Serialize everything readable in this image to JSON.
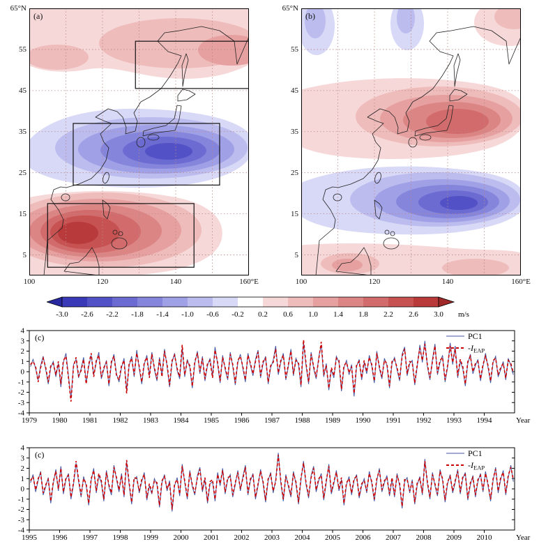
{
  "figure": {
    "panels": {
      "map_a_label": "(a)",
      "map_b_label": "(b)"
    },
    "map_axes": {
      "lat_ticks": [
        {
          "label": "65°N",
          "lat": 65
        },
        {
          "label": "55",
          "lat": 55
        },
        {
          "label": "45",
          "lat": 45
        },
        {
          "label": "35",
          "lat": 35
        },
        {
          "label": "25",
          "lat": 25
        },
        {
          "label": "15",
          "lat": 15
        },
        {
          "label": "5",
          "lat": 5
        }
      ],
      "lon_ticks": [
        {
          "label": "100",
          "lon": 100
        },
        {
          "label": "120",
          "lon": 120
        },
        {
          "label": "140",
          "lon": 140
        },
        {
          "label": "160°E",
          "lon": 160
        }
      ],
      "grid_lats": [
        55,
        45,
        35,
        25,
        15,
        5
      ],
      "grid_lons": [
        110,
        120,
        130,
        140,
        150
      ]
    },
    "colorbar": {
      "tick_labels": [
        "-3.0",
        "-2.6",
        "-2.2",
        "-1.8",
        "-1.4",
        "-1.0",
        "-0.6",
        "-0.2",
        "0.2",
        "0.6",
        "1.0",
        "1.4",
        "1.8",
        "2.2",
        "2.6",
        "3.0"
      ],
      "unit": "m/s",
      "cell_colors": [
        "#3a3ab8",
        "#5252c6",
        "#6b6bd2",
        "#8585dc",
        "#a0a0e6",
        "#bcbcef",
        "#d8d8f7",
        "#ffffff",
        "#f7d8d8",
        "#efbcbc",
        "#e6a0a0",
        "#dc8585",
        "#d26b6b",
        "#c65252",
        "#b83a3a"
      ],
      "left_arrow_color": "#2828a0",
      "right_arrow_color": "#a02828"
    }
  },
  "chart_data": [
    {
      "type": "heatmap",
      "subtype": "filled-contour-map",
      "label": "(a)",
      "lon_range": [
        100,
        160
      ],
      "lat_range": [
        0,
        65
      ],
      "unit": "m/s",
      "value_range": [
        -3.0,
        3.0
      ],
      "boxes": [
        {
          "lon": [
            129,
            160
          ],
          "lat": [
            45.5,
            57
          ]
        },
        {
          "lon": [
            112,
            152
          ],
          "lat": [
            22,
            37
          ]
        },
        {
          "lon": [
            105,
            145
          ],
          "lat": [
            2,
            17.5
          ]
        }
      ]
    },
    {
      "type": "heatmap",
      "subtype": "filled-contour-map",
      "label": "(b)",
      "lon_range": [
        100,
        160
      ],
      "lat_range": [
        0,
        65
      ],
      "unit": "m/s",
      "value_range": [
        -3.0,
        3.0
      ],
      "boxes": []
    },
    {
      "type": "line",
      "label": "(c)",
      "x_start": 1979,
      "x_end": 1995,
      "x_tick_labels": [
        "1979",
        "1980",
        "1981",
        "1982",
        "1983",
        "1984",
        "1985",
        "1986",
        "1987",
        "1988",
        "1989",
        "1990",
        "1991",
        "1992",
        "1993",
        "1994"
      ],
      "x_axis_suffix": "Year",
      "ylim": [
        -4,
        4
      ],
      "y_ticks": [
        -4,
        -3,
        -2,
        -1,
        0,
        1,
        2,
        3,
        4
      ],
      "series": [
        {
          "name": "PC1",
          "color": "#4455a0",
          "style": "solid",
          "monthly_values": [
            0.5,
            1.2,
            0.3,
            -0.8,
            0.6,
            1.5,
            0.2,
            -1.2,
            0.4,
            1.0,
            -0.5,
            0.8,
            -1.5,
            0.9,
            1.8,
            -0.4,
            -2.6,
            0.7,
            1.2,
            -0.6,
            0.3,
            1.4,
            -1.0,
            0.5,
            1.6,
            -0.3,
            0.9,
            1.9,
            -0.7,
            0.2,
            1.1,
            -1.4,
            0.8,
            1.7,
            -0.2,
            -1.0,
            0.4,
            1.3,
            -1.8,
            0.6,
            1.5,
            -0.5,
            2.1,
            0.3,
            -1.2,
            0.7,
            1.6,
            -0.4,
            1.9,
            0.2,
            -0.9,
            1.4,
            -0.3,
            2.2,
            0.5,
            -1.5,
            0.9,
            1.8,
            0.1,
            -0.7,
            2.3,
            -0.5,
            1.2,
            0.4,
            -1.6,
            0.8,
            2.0,
            -0.2,
            1.5,
            -0.9,
            0.6,
            1.3,
            -0.4,
            2.4,
            0.7,
            -1.1,
            1.6,
            0.2,
            -0.8,
            1.9,
            0.5,
            -1.3,
            0.9,
            1.7,
            0.3,
            -1.0,
            1.8,
            0.6,
            -0.4,
            1.2,
            2.1,
            -0.6,
            0.8,
            1.5,
            -1.2,
            0.4,
            1.1,
            2.5,
            -0.3,
            0.9,
            1.8,
            -0.8,
            0.5,
            2.2,
            -0.4,
            1.3,
            0.7,
            -1.5,
            2.8,
            0.6,
            -1.2,
            1.9,
            0.3,
            -0.7,
            1.4,
            2.6,
            -0.5,
            0.8,
            -1.8,
            0.2,
            -0.6,
            1.5,
            0.9,
            -1.9,
            0.4,
            1.1,
            -0.3,
            0.7,
            -2.4,
            0.5,
            1.2,
            -0.8,
            0.9,
            -0.2,
            1.6,
            0.5,
            -1.1,
            2.0,
            0.3,
            -0.7,
            1.3,
            0.6,
            -1.6,
            0.8,
            1.4,
            0.2,
            -0.9,
            1.7,
            2.4,
            -0.4,
            0.8,
            1.1,
            -1.3,
            0.5,
            2.6,
            0.9,
            3.0,
            0.5,
            -0.8,
            1.2,
            2.7,
            -0.3,
            0.9,
            1.6,
            -1.0,
            0.4,
            2.8,
            0.7,
            2.5,
            -0.6,
            1.0,
            0.3,
            -1.4,
            0.8,
            1.7,
            -0.2,
            0.6,
            1.2,
            -0.9,
            0.5,
            1.8,
            0.4,
            -1.1,
            0.9,
            1.5,
            -0.5,
            0.2,
            1.0,
            -0.8,
            1.3,
            0.6,
            -0.3
          ]
        },
        {
          "name": "-I_EAP",
          "display": {
            "main": "-I",
            "sub": "EAP"
          },
          "color": "#cc0000",
          "style": "dashed",
          "monthly_values": [
            0.7,
            1.0,
            0.5,
            -1.0,
            0.4,
            1.3,
            0.4,
            -1.0,
            0.6,
            0.8,
            -0.3,
            1.0,
            -1.2,
            1.1,
            1.5,
            -0.6,
            -2.9,
            0.5,
            1.4,
            -0.4,
            0.1,
            1.2,
            -1.2,
            0.7,
            1.8,
            -0.5,
            1.1,
            1.6,
            -0.5,
            0.4,
            0.9,
            -1.2,
            1.0,
            1.5,
            -0.4,
            -0.8,
            0.6,
            1.1,
            -2.1,
            0.8,
            1.3,
            -0.3,
            1.8,
            0.5,
            -1.0,
            0.9,
            1.4,
            -0.6,
            1.7,
            0.4,
            -0.7,
            1.2,
            -0.5,
            2.0,
            0.7,
            -1.3,
            1.1,
            1.6,
            0.3,
            -0.5,
            2.6,
            -0.3,
            1.0,
            0.6,
            -1.4,
            1.0,
            1.8,
            0.0,
            1.3,
            -0.7,
            0.8,
            1.1,
            -0.6,
            2.1,
            0.9,
            -0.9,
            1.4,
            0.4,
            -0.6,
            1.7,
            0.7,
            -1.1,
            1.1,
            1.5,
            0.5,
            -0.8,
            1.6,
            0.8,
            -0.2,
            1.0,
            1.9,
            -0.4,
            1.0,
            1.3,
            -1.0,
            0.6,
            0.9,
            2.2,
            -0.1,
            1.1,
            1.6,
            -0.6,
            0.7,
            2.0,
            -0.2,
            1.1,
            0.9,
            -1.3,
            3.1,
            0.8,
            -1.0,
            1.7,
            0.5,
            -0.5,
            1.2,
            2.9,
            -0.3,
            0.6,
            -1.6,
            0.4,
            -0.4,
            1.3,
            1.1,
            -1.7,
            0.6,
            0.9,
            -0.1,
            0.5,
            -2.1,
            0.7,
            1.0,
            -0.6,
            1.1,
            0.0,
            1.4,
            0.7,
            -0.9,
            1.8,
            0.5,
            -0.5,
            1.1,
            0.8,
            -1.4,
            1.0,
            1.2,
            0.4,
            -0.7,
            1.5,
            2.2,
            -0.2,
            1.0,
            0.9,
            -1.1,
            0.7,
            2.3,
            1.1,
            2.7,
            0.7,
            -0.6,
            1.0,
            2.5,
            -0.1,
            1.1,
            1.4,
            -0.8,
            0.6,
            2.5,
            0.9,
            2.2,
            -0.4,
            1.2,
            0.5,
            -1.2,
            1.0,
            1.5,
            0.0,
            0.8,
            1.0,
            -0.7,
            0.7,
            1.5,
            0.6,
            -0.9,
            1.1,
            1.3,
            -0.3,
            0.4,
            0.8,
            -0.6,
            1.1,
            0.8,
            -0.1
          ]
        }
      ]
    },
    {
      "type": "line",
      "label": "(c)",
      "x_start": 1995,
      "x_end": 2011,
      "x_tick_labels": [
        "1995",
        "1996",
        "1997",
        "1998",
        "1999",
        "2000",
        "2001",
        "2002",
        "2003",
        "2004",
        "2005",
        "2006",
        "2007",
        "2008",
        "2009",
        "2010"
      ],
      "x_axis_suffix": "Year",
      "ylim": [
        -4,
        4
      ],
      "y_ticks": [
        -4,
        -3,
        -2,
        -1,
        0,
        1,
        2,
        3,
        4
      ],
      "series": [
        {
          "name": "PC1",
          "color": "#4455a0",
          "style": "solid",
          "monthly_values": [
            0.6,
            1.4,
            -0.3,
            0.8,
            1.7,
            -0.6,
            0.2,
            1.1,
            -1.4,
            0.5,
            1.9,
            -0.2,
            2.2,
            -0.5,
            0.9,
            1.5,
            -1.0,
            0.4,
            2.5,
            0.7,
            -0.8,
            1.2,
            0.3,
            -1.6,
            0.8,
            2.0,
            -0.4,
            1.3,
            0.6,
            -1.2,
            1.8,
            0.2,
            -0.6,
            2.3,
            0.9,
            -0.3,
            1.5,
            -0.8,
            2.6,
            0.4,
            -1.5,
            0.9,
            1.2,
            -0.4,
            0.7,
            1.6,
            -1.1,
            0.3,
            -0.5,
            1.0,
            0.4,
            -1.8,
            0.6,
            1.4,
            -0.2,
            0.8,
            -2.2,
            0.3,
            1.1,
            -0.7,
            2.4,
            0.6,
            -1.0,
            1.8,
            0.2,
            -0.6,
            1.3,
            2.1,
            -0.3,
            0.9,
            -1.4,
            0.5,
            0.7,
            -1.2,
            1.6,
            0.3,
            2.0,
            -0.5,
            0.9,
            1.4,
            -0.8,
            0.4,
            1.8,
            -0.2,
            1.2,
            2.3,
            -0.6,
            0.8,
            1.5,
            -1.0,
            0.3,
            1.9,
            0.5,
            -1.3,
            0.8,
            1.6,
            -0.4,
            0.9,
            3.5,
            0.6,
            -1.2,
            1.4,
            0.2,
            -0.8,
            1.7,
            0.5,
            -1.5,
            0.9,
            2.7,
            0.4,
            -0.9,
            1.3,
            2.2,
            -0.3,
            0.8,
            1.5,
            -1.1,
            0.6,
            2.4,
            -0.5,
            0.5,
            1.8,
            -0.2,
            0.9,
            -1.6,
            0.4,
            1.2,
            -0.6,
            0.8,
            1.4,
            -0.9,
            0.3,
            1.0,
            -0.4,
            1.7,
            0.5,
            -1.2,
            0.8,
            2.0,
            -0.3,
            0.6,
            1.3,
            -0.7,
            0.9,
            -0.8,
            1.5,
            0.3,
            -1.9,
            0.7,
            1.1,
            -0.4,
            0.9,
            -1.5,
            0.4,
            1.2,
            -0.6,
            2.9,
            0.5,
            -1.0,
            1.6,
            0.3,
            -0.7,
            1.9,
            0.8,
            -1.3,
            0.5,
            1.4,
            -0.4,
            0.6,
            1.9,
            -0.5,
            1.0,
            1.6,
            -1.1,
            0.4,
            1.3,
            -0.8,
            0.7,
            1.5,
            -0.3,
            1.7,
            0.3,
            -1.2,
            0.8,
            2.1,
            -0.4,
            0.9,
            1.8,
            -0.6,
            1.1,
            2.3,
            0.7
          ]
        },
        {
          "name": "-I_EAP",
          "display": {
            "main": "-I",
            "sub": "EAP"
          },
          "color": "#cc0000",
          "style": "dashed",
          "monthly_values": [
            0.8,
            1.2,
            -0.1,
            1.0,
            1.5,
            -0.4,
            0.4,
            0.9,
            -1.2,
            0.7,
            1.7,
            0.0,
            2.0,
            -0.3,
            1.1,
            1.3,
            -0.8,
            0.6,
            2.7,
            0.9,
            -0.6,
            1.0,
            0.5,
            -1.4,
            1.0,
            1.8,
            -0.2,
            1.5,
            0.8,
            -1.0,
            1.6,
            0.4,
            -0.4,
            2.1,
            1.1,
            -0.1,
            1.3,
            -0.6,
            2.8,
            0.6,
            -1.3,
            1.1,
            1.0,
            -0.2,
            0.9,
            1.4,
            -0.9,
            0.5,
            -0.3,
            0.8,
            0.6,
            -1.6,
            0.8,
            1.2,
            0.0,
            0.6,
            -2.0,
            0.5,
            0.9,
            -0.5,
            2.2,
            0.8,
            -0.8,
            1.6,
            0.4,
            -0.4,
            1.1,
            1.9,
            -0.1,
            1.1,
            -1.2,
            0.7,
            0.9,
            -1.0,
            1.4,
            0.5,
            1.8,
            -0.3,
            1.1,
            1.2,
            -0.6,
            0.6,
            1.6,
            0.0,
            1.0,
            2.1,
            -0.4,
            1.0,
            1.3,
            -0.8,
            0.5,
            1.7,
            0.7,
            -1.1,
            1.0,
            1.4,
            -0.2,
            0.7,
            3.3,
            0.8,
            -1.0,
            1.2,
            0.4,
            -0.6,
            1.5,
            0.7,
            -1.3,
            1.1,
            2.5,
            0.6,
            -0.7,
            1.1,
            2.0,
            -0.1,
            1.0,
            1.3,
            -0.9,
            0.8,
            2.2,
            -0.3,
            0.7,
            1.6,
            0.0,
            1.1,
            -1.4,
            0.6,
            1.0,
            -0.4,
            1.0,
            1.2,
            -0.7,
            0.5,
            0.8,
            -0.2,
            1.5,
            0.7,
            -1.0,
            1.0,
            1.8,
            -0.1,
            0.8,
            1.1,
            -0.5,
            1.1,
            -0.6,
            1.3,
            0.5,
            -1.7,
            0.9,
            0.9,
            -0.2,
            0.7,
            -1.3,
            0.6,
            1.0,
            -0.4,
            2.7,
            0.7,
            -0.8,
            1.4,
            0.5,
            -0.5,
            1.7,
            1.0,
            -1.1,
            0.7,
            1.2,
            -0.2,
            0.8,
            1.7,
            -0.3,
            1.2,
            1.4,
            -0.9,
            0.6,
            1.1,
            -0.6,
            0.9,
            1.3,
            -0.1,
            1.5,
            0.5,
            -1.0,
            1.0,
            1.9,
            -0.2,
            1.1,
            1.6,
            -0.4,
            1.3,
            2.1,
            0.9
          ]
        }
      ]
    }
  ]
}
